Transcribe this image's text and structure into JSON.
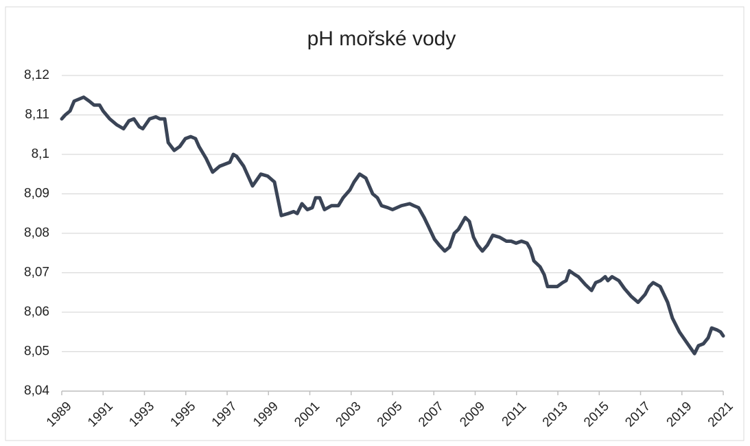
{
  "chart_data": {
    "type": "line",
    "title": "pH mořské vody",
    "x": [
      1989.0,
      1989.17,
      1989.4,
      1989.6,
      1989.83,
      1990.06,
      1990.33,
      1990.56,
      1990.83,
      1991.0,
      1991.32,
      1991.66,
      1991.99,
      1992.25,
      1992.49,
      1992.75,
      1992.92,
      1993.25,
      1993.55,
      1993.75,
      1993.98,
      1994.15,
      1994.44,
      1994.71,
      1994.98,
      1995.24,
      1995.47,
      1995.64,
      1995.98,
      1996.3,
      1996.64,
      1997.13,
      1997.3,
      1997.46,
      1997.8,
      1998.23,
      1998.63,
      1998.96,
      1999.29,
      1999.62,
      1999.95,
      2000.22,
      2000.39,
      2000.62,
      2000.88,
      2001.12,
      2001.28,
      2001.48,
      2001.71,
      2002.05,
      2002.38,
      2002.61,
      2002.94,
      2003.14,
      2003.41,
      2003.71,
      2004.04,
      2004.27,
      2004.47,
      2004.77,
      2005.0,
      2005.43,
      2005.83,
      2006.03,
      2006.26,
      2006.53,
      2006.76,
      2007.03,
      2007.26,
      2007.53,
      2007.76,
      2007.99,
      2008.19,
      2008.52,
      2008.72,
      2008.92,
      2009.12,
      2009.35,
      2009.59,
      2009.85,
      2010.18,
      2010.51,
      2010.74,
      2010.98,
      2011.24,
      2011.51,
      2011.67,
      2011.84,
      2012.14,
      2012.34,
      2012.5,
      2012.97,
      2013.23,
      2013.4,
      2013.56,
      2013.83,
      2013.99,
      2014.33,
      2014.63,
      2014.83,
      2015.06,
      2015.29,
      2015.42,
      2015.62,
      2015.95,
      2016.22,
      2016.55,
      2016.88,
      2017.22,
      2017.42,
      2017.61,
      2017.95,
      2018.31,
      2018.54,
      2018.88,
      2019.21,
      2019.61,
      2019.8,
      2020.04,
      2020.27,
      2020.44,
      2020.7,
      2020.87,
      2021.0
    ],
    "series": [
      {
        "color": "#3a4456",
        "values": [
          8.109,
          8.11,
          8.111,
          8.1135,
          8.114,
          8.1145,
          8.1135,
          8.1125,
          8.1125,
          8.111,
          8.109,
          8.1075,
          8.1065,
          8.1085,
          8.109,
          8.107,
          8.1065,
          8.109,
          8.1095,
          8.109,
          8.109,
          8.103,
          8.101,
          8.102,
          8.104,
          8.1045,
          8.104,
          8.102,
          8.099,
          8.0955,
          8.097,
          8.098,
          8.1,
          8.0995,
          8.097,
          8.092,
          8.095,
          8.0945,
          8.093,
          8.0845,
          8.085,
          8.0855,
          8.085,
          8.0875,
          8.086,
          8.0865,
          8.089,
          8.089,
          8.086,
          8.087,
          8.087,
          8.089,
          8.091,
          8.093,
          8.095,
          8.094,
          8.09,
          8.089,
          8.087,
          8.0865,
          8.086,
          8.087,
          8.0875,
          8.087,
          8.0865,
          8.084,
          8.0815,
          8.0785,
          8.077,
          8.0755,
          8.0765,
          8.08,
          8.081,
          8.084,
          8.083,
          8.079,
          8.077,
          8.0755,
          8.077,
          8.0795,
          8.079,
          8.078,
          8.078,
          8.0775,
          8.078,
          8.0775,
          8.076,
          8.073,
          8.0715,
          8.0695,
          8.0665,
          8.0665,
          8.0675,
          8.068,
          8.0705,
          8.0695,
          8.069,
          8.067,
          8.0655,
          8.0675,
          8.068,
          8.069,
          8.068,
          8.069,
          8.068,
          8.066,
          8.064,
          8.0625,
          8.0645,
          8.0665,
          8.0675,
          8.0665,
          8.0625,
          8.0585,
          8.055,
          8.0525,
          8.0495,
          8.0515,
          8.052,
          8.0535,
          8.056,
          8.0555,
          8.055,
          8.054
        ]
      }
    ],
    "xlim": [
      1989,
      2021
    ],
    "xticks": [
      1989,
      1991,
      1993,
      1995,
      1997,
      1999,
      2001,
      2003,
      2005,
      2007,
      2009,
      2011,
      2013,
      2015,
      2017,
      2019,
      2021
    ],
    "ylim": [
      8.04,
      8.12
    ],
    "yticks": [
      {
        "value": 8.04,
        "label": "8,04"
      },
      {
        "value": 8.05,
        "label": "8,05"
      },
      {
        "value": 8.06,
        "label": "8,06"
      },
      {
        "value": 8.07,
        "label": "8,07"
      },
      {
        "value": 8.08,
        "label": "8,08"
      },
      {
        "value": 8.09,
        "label": "8,09"
      },
      {
        "value": 8.1,
        "label": "8,1"
      },
      {
        "value": 8.11,
        "label": "8,11"
      },
      {
        "value": 8.12,
        "label": "8,12"
      }
    ],
    "grid": true
  }
}
